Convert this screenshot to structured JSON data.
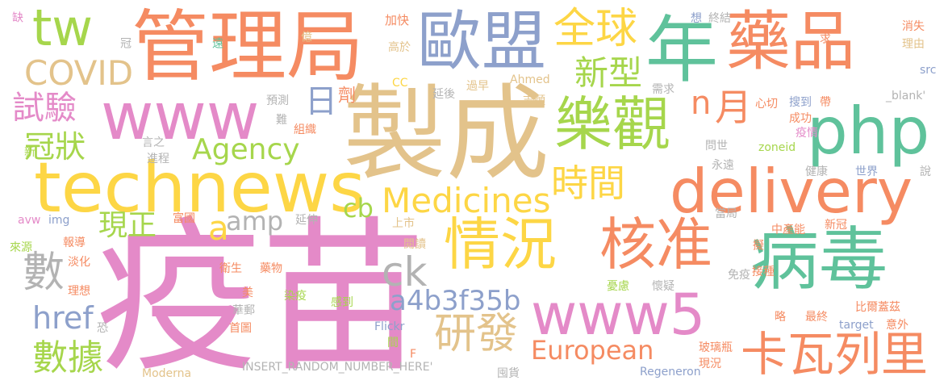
{
  "colors": {
    "pink": "#e48ac8",
    "tan": "#e3c38b",
    "orange": "#f58b62",
    "teal": "#5fc29b",
    "yellow": "#fdd645",
    "green": "#a6d64c",
    "blue": "#8da0cb",
    "gray": "#b3b3b3"
  },
  "words": [
    "疫苗",
    "製成",
    "年",
    "藥品",
    "管理局",
    "歐盟",
    "technews",
    "www",
    "php",
    "樂觀",
    "delivery",
    "病毒",
    "情況",
    "核准",
    "www5",
    "卡瓦列里",
    "tw",
    "全球",
    "新型",
    "COVID",
    "試驗",
    "冠狀",
    "Agency",
    "Medicines",
    "時間",
    "月",
    "n",
    "日",
    "劑",
    "現正",
    "amp",
    "a",
    "cb",
    "數",
    "ck",
    "a4b3f35b",
    "href",
    "研發",
    "European",
    "數據",
    "缺",
    "加快",
    "想",
    "終結",
    "高於",
    "遠",
    "億",
    "冠",
    "求",
    "消失",
    "理由",
    "src",
    "CC",
    "過早",
    "Ahmed",
    "需求",
    "預測",
    "延後",
    "志願",
    "_blank'",
    "心切",
    "搜到",
    "帶",
    "成功",
    "疫情",
    "問世",
    "zoneid",
    "組織",
    "難",
    "言之",
    "進程",
    "新",
    "永遠",
    "健康",
    "世界",
    "說",
    "上市",
    "當局",
    "延伸",
    "富國",
    "avw",
    "img",
    "中產能",
    "新冠",
    "報導",
    "來源",
    "閱讀",
    "擬",
    "淡化",
    "接種",
    "衛生",
    "藥物",
    "理想",
    "美",
    "染疫",
    "感到",
    "憂慮",
    "懷疑",
    "免疫",
    "華郵",
    "恐",
    "首圖",
    "比爾蓋茲",
    "最終",
    "略",
    "target",
    "意外",
    "Flickr",
    "間",
    "F",
    "玻璃瓶",
    "現況",
    "Moderna",
    "INSERT_RANDOM_NUMBER_HERE'",
    "囤貨",
    "Regeneron"
  ]
}
